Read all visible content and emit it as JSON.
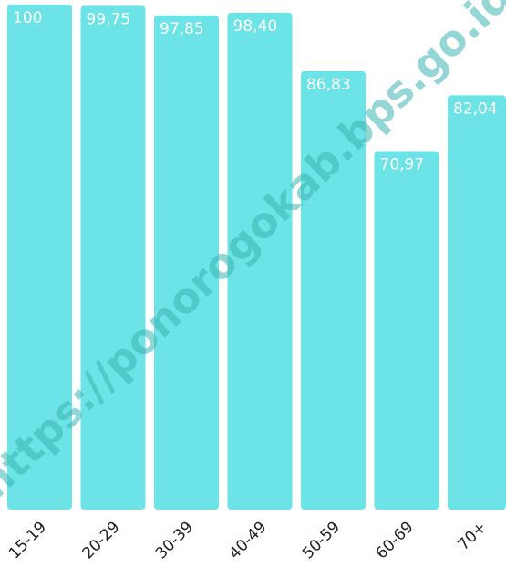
{
  "chart_data": {
    "type": "bar",
    "categories": [
      "15-19",
      "20-29",
      "30-39",
      "40-49",
      "50-59",
      "60-69",
      "70+"
    ],
    "values": [
      100,
      99.75,
      97.85,
      98.4,
      86.83,
      70.97,
      82.04
    ],
    "value_labels": [
      "100",
      "99,75",
      "97,85",
      "98,40",
      "86,83",
      "70,97",
      "82,04"
    ],
    "ylim": [
      0,
      100
    ],
    "grid": false,
    "title": "",
    "xlabel": "",
    "ylabel": ""
  },
  "watermark": "https://ponorogokab.bps.go.id",
  "colors": {
    "bar": "#6ce3e6",
    "bar_label": "#ffffff",
    "tick_label": "#222222"
  }
}
